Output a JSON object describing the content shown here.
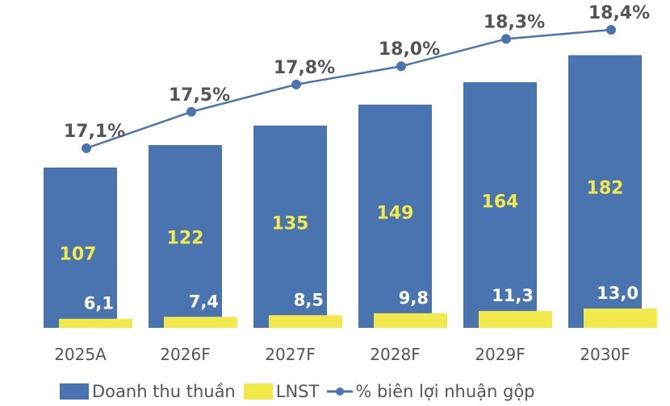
{
  "chart_data": {
    "type": "bar",
    "title": "",
    "xlabel": "",
    "ylabel": "",
    "grid": false,
    "legend_position": "bottom",
    "categories": [
      "2025A",
      "2026F",
      "2027F",
      "2028F",
      "2029F",
      "2030F"
    ],
    "series": [
      {
        "name": "Doanh thu thuần",
        "type": "bar",
        "color": "#4a74b0",
        "values": [
          107,
          122,
          135,
          149,
          164,
          182
        ],
        "labels": [
          "107",
          "122",
          "135",
          "149",
          "164",
          "182"
        ]
      },
      {
        "name": "LNST",
        "type": "bar",
        "color": "#f2ea4c",
        "values": [
          6.1,
          7.4,
          8.5,
          9.8,
          11.3,
          13.0
        ],
        "labels": [
          "6,1",
          "7,4",
          "8,5",
          "9,8",
          "11,3",
          "13,0"
        ]
      },
      {
        "name": "% biên lợi nhuận  gộp",
        "type": "line",
        "color": "#4a74b0",
        "values": [
          17.1,
          17.5,
          17.8,
          18.0,
          18.3,
          18.4
        ],
        "labels": [
          "17,1%",
          "17,5%",
          "17,8%",
          "18,0%",
          "18,3%",
          "18,4%"
        ]
      }
    ]
  },
  "legend": {
    "items": [
      {
        "label": "Doanh thu thuần",
        "color": "#4a74b0"
      },
      {
        "label": "LNST",
        "color": "#f2ea4c"
      },
      {
        "label": "% biên lợi nhuận  gộp",
        "color": "#4a74b0"
      }
    ]
  }
}
